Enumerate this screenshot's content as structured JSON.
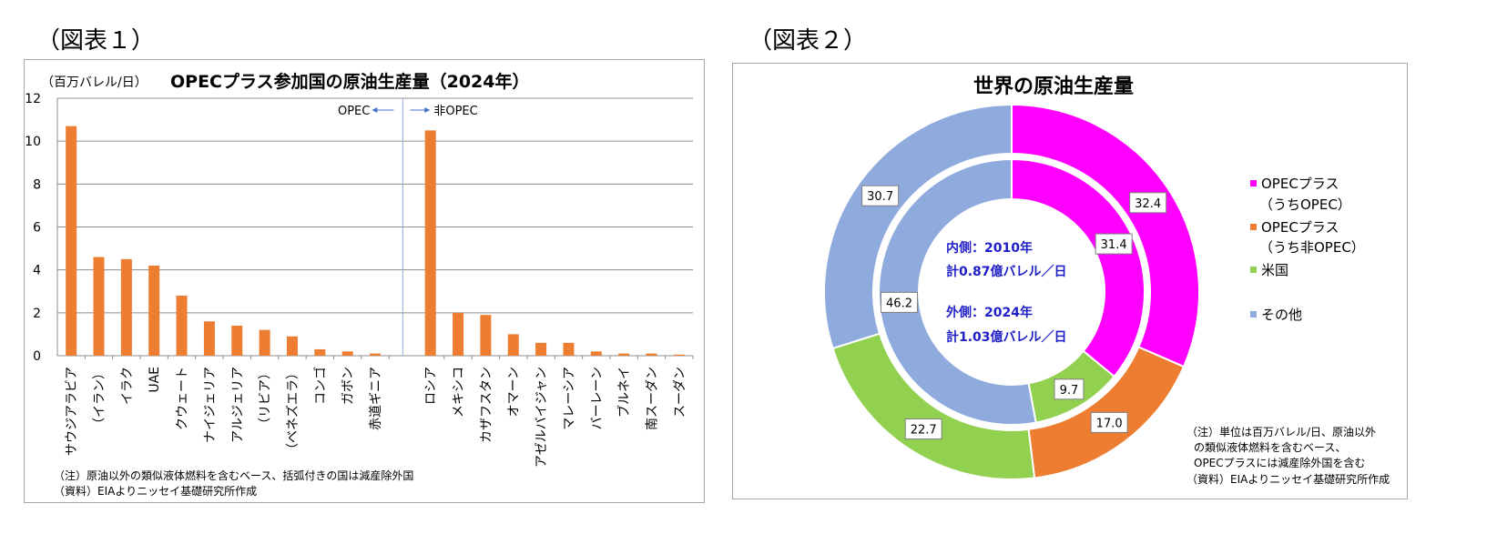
{
  "figure1": {
    "label": "（図表１）",
    "title": "OPECプラス参加国の原油生産量（2024年）",
    "unit": "（百万バレル/日）",
    "opec_marker": "OPEC",
    "nonopec_marker": "非OPEC",
    "note": "（注）原油以外の類似液体燃料を含むベース、括弧付きの国は減産除外国",
    "source": "（資料）EIAよりニッセイ基礎研究所作成",
    "chart_data": {
      "type": "bar",
      "title": "OPECプラス参加国の原油生産量（2024年）",
      "ylabel": "（百万バレル/日）",
      "ylim": [
        0,
        12
      ],
      "yticks": [
        0,
        2,
        4,
        6,
        8,
        10,
        12
      ],
      "grid": true,
      "bar_color": "#ed7d31",
      "groups": [
        {
          "name": "OPEC",
          "categories": [
            "サウジアラビア",
            "（イラン）",
            "イラク",
            "UAE",
            "クウェート",
            "ナイジェリア",
            "アルジェリア",
            "（リビア）",
            "（ベネズエラ）",
            "コンゴ",
            "ガボン",
            "赤道ギニア"
          ],
          "values": [
            10.7,
            4.6,
            4.5,
            4.2,
            2.8,
            1.6,
            1.4,
            1.2,
            0.9,
            0.3,
            0.2,
            0.1
          ]
        },
        {
          "name": "非OPEC",
          "categories": [
            "ロシア",
            "メキシコ",
            "カザフスタン",
            "オマーン",
            "アゼルバイジャン",
            "マレーシア",
            "バーレーン",
            "ブルネイ",
            "南スーダン",
            "スーダン"
          ],
          "values": [
            10.5,
            2.0,
            1.9,
            1.0,
            0.6,
            0.6,
            0.2,
            0.1,
            0.1,
            0.05
          ]
        }
      ]
    }
  },
  "figure2": {
    "label": "（図表２）",
    "title": "世界の原油生産量",
    "center_inner_1": "内側：2010年",
    "center_inner_2": "計0.87億バレル／日",
    "center_outer_1": "外側：2024年",
    "center_outer_2": "計1.03億バレル／日",
    "note_1": "（注）単位は百万バレル/日、原油以外",
    "note_2": "の類似液体燃料を含むベース、",
    "note_3": "OPECプラスには減産除外国を含む",
    "source": "（資料）EIAよりニッセイ基礎研究所作成",
    "legend": [
      {
        "line1": "OPECプラス",
        "line2": "（うちOPEC）",
        "color": "#ff00ff"
      },
      {
        "line1": "OPECプラス",
        "line2": "（うち非OPEC）",
        "color": "#ed7d31"
      },
      {
        "line1": "米国",
        "line2": "",
        "color": "#92d050"
      },
      {
        "line1": "その他",
        "line2": "",
        "color": "#8faadc"
      }
    ],
    "chart_data": {
      "type": "pie",
      "subtype": "donut",
      "title": "世界の原油生産量",
      "categories": [
        "OPECプラス（うちOPEC）",
        "OPECプラス（うち非OPEC）",
        "米国",
        "その他"
      ],
      "colors": [
        "#ff00ff",
        "#ed7d31",
        "#92d050",
        "#8faadc"
      ],
      "series": [
        {
          "name": "内側：2010年",
          "values": [
            31.4,
            0,
            9.7,
            46.2
          ],
          "labels": [
            "31.4",
            "",
            "9.7",
            "46.2"
          ]
        },
        {
          "name": "外側：2024年",
          "values": [
            32.4,
            17.0,
            22.7,
            30.7
          ],
          "labels": [
            "32.4",
            "17.0",
            "22.7",
            "30.7"
          ]
        }
      ]
    }
  }
}
